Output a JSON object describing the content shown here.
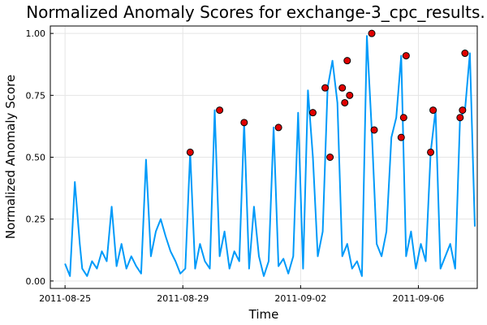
{
  "chart_data": {
    "type": "line",
    "title": "Normalized Anomaly Scores for exchange-3_cpc_results.",
    "xlabel": "Time",
    "ylabel": "Normalized Anomaly Score",
    "xlim": [
      "2011-08-24T12:00",
      "2011-09-08T00:00"
    ],
    "ylim": [
      -0.03,
      1.03
    ],
    "x_ticks": [
      "2011-08-25",
      "2011-08-29",
      "2011-09-02",
      "2011-09-06"
    ],
    "x_tick_labels": [
      "2011-08-25",
      "2011-08-29",
      "2011-09-02",
      "2011-09-06"
    ],
    "y_ticks": [
      0.0,
      0.25,
      0.5,
      0.75,
      1.0
    ],
    "y_tick_labels": [
      "0.00",
      "0.25",
      "0.50",
      "0.75",
      "1.00"
    ],
    "grid": true,
    "legend": "none",
    "colors": {
      "line": "#009af9",
      "points": "#e00000"
    },
    "series": [
      {
        "kind": "line",
        "x": [
          "2011-08-25T00:00",
          "2011-08-25T04:00",
          "2011-08-25T08:00",
          "2011-08-25T12:00",
          "2011-08-25T14:00",
          "2011-08-25T18:00",
          "2011-08-25T22:00",
          "2011-08-26T02:00",
          "2011-08-26T06:00",
          "2011-08-26T10:00",
          "2011-08-26T14:00",
          "2011-08-26T18:00",
          "2011-08-26T22:00",
          "2011-08-27T02:00",
          "2011-08-27T06:00",
          "2011-08-27T10:00",
          "2011-08-27T14:00",
          "2011-08-27T18:00",
          "2011-08-27T22:00",
          "2011-08-28T02:00",
          "2011-08-28T06:00",
          "2011-08-28T10:00",
          "2011-08-28T14:00",
          "2011-08-28T18:00",
          "2011-08-28T22:00",
          "2011-08-29T02:00",
          "2011-08-29T06:00",
          "2011-08-29T10:00",
          "2011-08-29T14:00",
          "2011-08-29T18:00",
          "2011-08-29T22:00",
          "2011-08-30T02:00",
          "2011-08-30T06:00",
          "2011-08-30T10:00",
          "2011-08-30T14:00",
          "2011-08-30T18:00",
          "2011-08-30T22:00",
          "2011-08-31T02:00",
          "2011-08-31T06:00",
          "2011-08-31T10:00",
          "2011-08-31T14:00",
          "2011-08-31T18:00",
          "2011-08-31T22:00",
          "2011-09-01T02:00",
          "2011-09-01T06:00",
          "2011-09-01T10:00",
          "2011-09-01T14:00",
          "2011-09-01T18:00",
          "2011-09-01T22:00",
          "2011-09-02T02:00",
          "2011-09-02T06:00",
          "2011-09-02T10:00",
          "2011-09-02T14:00",
          "2011-09-02T18:00",
          "2011-09-02T22:00",
          "2011-09-03T02:00",
          "2011-09-03T06:00",
          "2011-09-03T10:00",
          "2011-09-03T14:00",
          "2011-09-03T18:00",
          "2011-09-03T22:00",
          "2011-09-04T02:00",
          "2011-09-04T06:00",
          "2011-09-04T10:00",
          "2011-09-04T14:00",
          "2011-09-04T18:00",
          "2011-09-04T22:00",
          "2011-09-05T02:00",
          "2011-09-05T06:00",
          "2011-09-05T10:00",
          "2011-09-05T14:00",
          "2011-09-05T18:00",
          "2011-09-05T22:00",
          "2011-09-06T02:00",
          "2011-09-06T06:00",
          "2011-09-06T10:00",
          "2011-09-06T14:00",
          "2011-09-06T18:00",
          "2011-09-06T22:00",
          "2011-09-07T02:00",
          "2011-09-07T06:00",
          "2011-09-07T10:00",
          "2011-09-07T14:00",
          "2011-09-07T18:00",
          "2011-09-07T22:00"
        ],
        "y": [
          0.07,
          0.02,
          0.4,
          0.15,
          0.05,
          0.02,
          0.08,
          0.05,
          0.12,
          0.08,
          0.3,
          0.06,
          0.15,
          0.05,
          0.1,
          0.06,
          0.03,
          0.49,
          0.1,
          0.2,
          0.25,
          0.18,
          0.12,
          0.08,
          0.03,
          0.05,
          0.52,
          0.05,
          0.15,
          0.08,
          0.05,
          0.69,
          0.1,
          0.2,
          0.05,
          0.12,
          0.08,
          0.64,
          0.05,
          0.3,
          0.1,
          0.02,
          0.08,
          0.62,
          0.06,
          0.09,
          0.03,
          0.1,
          0.68,
          0.05,
          0.77,
          0.5,
          0.1,
          0.2,
          0.78,
          0.89,
          0.72,
          0.1,
          0.15,
          0.05,
          0.08,
          0.02,
          0.99,
          0.61,
          0.15,
          0.1,
          0.2,
          0.58,
          0.66,
          0.91,
          0.1,
          0.2,
          0.05,
          0.15,
          0.08,
          0.52,
          0.69,
          0.05,
          0.1,
          0.15,
          0.05,
          0.66,
          0.69,
          0.92,
          0.22
        ]
      },
      {
        "kind": "scatter",
        "x": [
          "2011-08-29T06:00",
          "2011-08-30T06:00",
          "2011-08-31T02:00",
          "2011-09-01T06:00",
          "2011-09-02T10:00",
          "2011-09-02T20:00",
          "2011-09-03T00:00",
          "2011-09-03T10:00",
          "2011-09-03T12:00",
          "2011-09-03T14:00",
          "2011-09-03T16:00",
          "2011-09-04T10:00",
          "2011-09-04T12:00",
          "2011-09-05T10:00",
          "2011-09-05T12:00",
          "2011-09-05T14:00",
          "2011-09-06T10:00",
          "2011-09-06T12:00",
          "2011-09-07T10:00",
          "2011-09-07T12:00",
          "2011-09-07T14:00"
        ],
        "y": [
          0.52,
          0.69,
          0.64,
          0.62,
          0.68,
          0.78,
          0.5,
          0.78,
          0.72,
          0.89,
          0.75,
          1.0,
          0.61,
          0.58,
          0.66,
          0.91,
          0.52,
          0.69,
          0.66,
          0.69,
          0.92
        ]
      }
    ]
  }
}
